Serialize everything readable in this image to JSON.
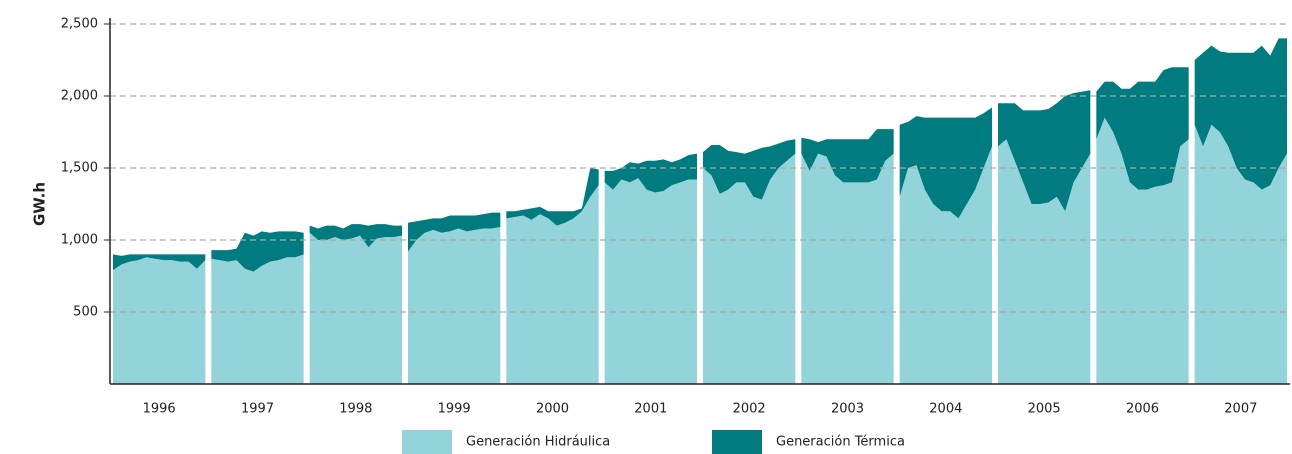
{
  "chart_data": {
    "type": "stacked-area",
    "ylabel": "GW.h",
    "categories": [
      "1996",
      "1997",
      "1998",
      "1999",
      "2000",
      "2001",
      "2002",
      "2003",
      "2004",
      "2005",
      "2006",
      "2007"
    ],
    "ylim": [
      0,
      2500
    ],
    "yticks": [
      500,
      {
        "value": 1000,
        "label": "1,000"
      },
      {
        "value": 1500,
        "label": "1,500"
      },
      {
        "value": 2000,
        "label": "2,000"
      },
      {
        "value": 2500,
        "label": "2,500"
      }
    ],
    "grid": true,
    "series": [
      {
        "name": "Generación Hidráulica",
        "color": "#93d4db",
        "values": [
          [
            790,
            830,
            850,
            860,
            880,
            870,
            860,
            860,
            850,
            850,
            800,
            860
          ],
          [
            870,
            860,
            850,
            860,
            800,
            780,
            820,
            850,
            860,
            880,
            880,
            900
          ],
          [
            1050,
            1000,
            1000,
            1020,
            1000,
            1010,
            1030,
            950,
            1010,
            1020,
            1020,
            1030
          ],
          [
            920,
            1000,
            1050,
            1070,
            1050,
            1060,
            1080,
            1060,
            1070,
            1080,
            1080,
            1090
          ],
          [
            1150,
            1160,
            1170,
            1140,
            1180,
            1150,
            1100,
            1120,
            1150,
            1200,
            1300,
            1380
          ],
          [
            1400,
            1350,
            1420,
            1400,
            1430,
            1350,
            1330,
            1340,
            1380,
            1400,
            1420,
            1420
          ],
          [
            1500,
            1450,
            1320,
            1350,
            1400,
            1400,
            1300,
            1280,
            1420,
            1500,
            1550,
            1600
          ],
          [
            1600,
            1480,
            1600,
            1580,
            1450,
            1400,
            1400,
            1400,
            1400,
            1420,
            1550,
            1600
          ],
          [
            1300,
            1500,
            1520,
            1350,
            1250,
            1200,
            1200,
            1150,
            1250,
            1350,
            1500,
            1650
          ],
          [
            1650,
            1700,
            1550,
            1400,
            1250,
            1250,
            1260,
            1300,
            1200,
            1400,
            1500,
            1600
          ],
          [
            1700,
            1850,
            1750,
            1600,
            1400,
            1350,
            1350,
            1370,
            1380,
            1400,
            1650,
            1700
          ],
          [
            1800,
            1650,
            1800,
            1750,
            1650,
            1500,
            1420,
            1400,
            1350,
            1380,
            1500,
            1600
          ]
        ]
      },
      {
        "name": "Generación Térmica",
        "color": "#007c80",
        "values": [
          [
            110,
            60,
            50,
            40,
            20,
            30,
            40,
            40,
            50,
            50,
            100,
            40
          ],
          [
            60,
            70,
            80,
            80,
            250,
            250,
            240,
            200,
            200,
            180,
            180,
            150
          ],
          [
            50,
            80,
            100,
            80,
            80,
            100,
            80,
            150,
            100,
            90,
            80,
            70
          ],
          [
            200,
            130,
            90,
            80,
            100,
            110,
            90,
            110,
            100,
            100,
            110,
            100
          ],
          [
            50,
            40,
            40,
            80,
            50,
            50,
            100,
            80,
            50,
            20,
            200,
            110
          ],
          [
            80,
            130,
            80,
            140,
            100,
            200,
            220,
            220,
            160,
            160,
            170,
            180
          ],
          [
            110,
            210,
            340,
            270,
            210,
            200,
            320,
            360,
            230,
            170,
            140,
            100
          ],
          [
            110,
            220,
            80,
            120,
            250,
            300,
            300,
            300,
            300,
            350,
            220,
            170
          ],
          [
            500,
            320,
            340,
            500,
            600,
            650,
            650,
            700,
            600,
            500,
            380,
            270
          ],
          [
            300,
            250,
            400,
            500,
            650,
            650,
            650,
            650,
            800,
            620,
            530,
            440
          ],
          [
            330,
            250,
            350,
            450,
            650,
            750,
            750,
            730,
            800,
            800,
            550,
            500
          ],
          [
            450,
            650,
            550,
            560,
            650,
            800,
            880,
            900,
            1000,
            900,
            900,
            800
          ]
        ]
      }
    ]
  }
}
